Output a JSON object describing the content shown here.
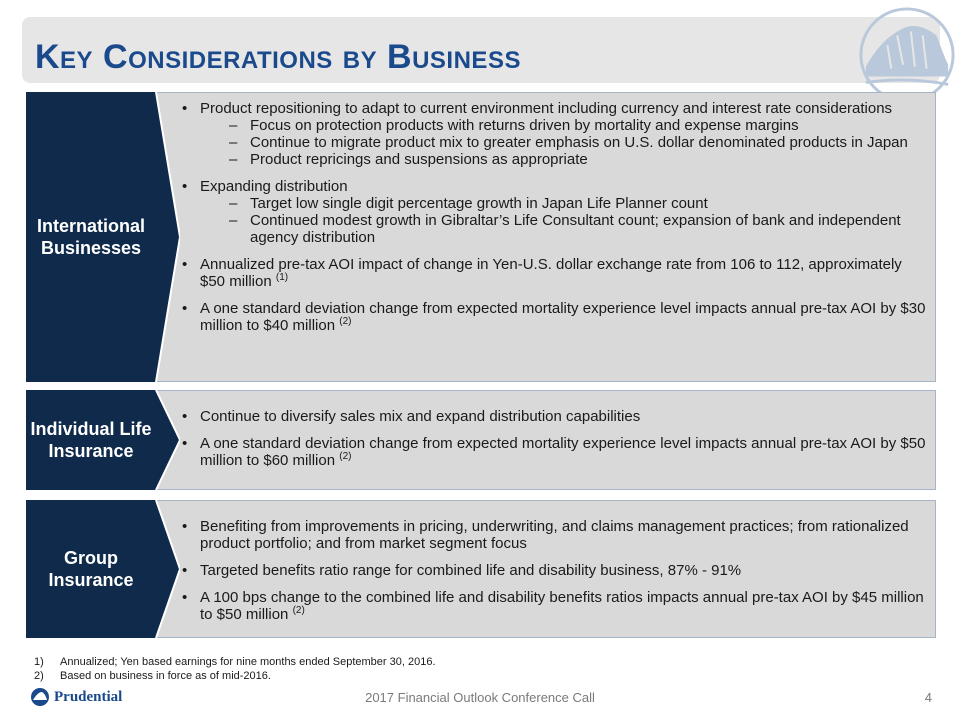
{
  "title": "Key Considerations by Business",
  "sections": {
    "international": {
      "label": "International Businesses",
      "bullets": [
        {
          "text": "Product repositioning to adapt to current environment including currency and interest rate considerations",
          "subs": [
            "Focus on protection products with returns driven by mortality and expense margins",
            "Continue to migrate product mix to greater emphasis on U.S. dollar denominated products in Japan",
            "Product repricings and suspensions as appropriate"
          ]
        },
        {
          "text": "Expanding distribution",
          "subs": [
            "Target low single digit percentage growth in Japan Life Planner count",
            "Continued modest growth in Gibraltar’s Life Consultant count; expansion of bank and independent agency distribution"
          ]
        },
        {
          "text": "Annualized pre-tax AOI impact of change in Yen-U.S. dollar exchange rate from 106 to 112, approximately $50 million",
          "sup": "(1)"
        },
        {
          "text": "A one standard deviation change from expected mortality experience level impacts annual pre-tax AOI by $30 million to $40 million",
          "sup": "(2)"
        }
      ]
    },
    "individual": {
      "label": "Individual Life Insurance",
      "bullets": [
        {
          "text": "Continue to diversify sales mix and expand distribution capabilities"
        },
        {
          "text": "A one standard deviation change from expected mortality experience level impacts annual pre-tax AOI by $50 million to $60 million",
          "sup": "(2)"
        }
      ]
    },
    "group": {
      "label": "Group Insurance",
      "bullets": [
        {
          "text": "Benefiting from improvements in pricing, underwriting, and claims management practices; from rationalized product portfolio; and from market segment focus"
        },
        {
          "text": "Targeted benefits ratio range for combined life and disability business, 87% - 91%"
        },
        {
          "text": "A 100 bps change to the combined life and disability benefits ratios impacts annual pre-tax AOI by $45 million to $50 million",
          "sup": "(2)"
        }
      ]
    }
  },
  "footnotes": [
    {
      "num": "1)",
      "text": "Annualized; Yen based earnings for nine months ended September 30, 2016."
    },
    {
      "num": "2)",
      "text": "Based on business in force as of mid-2016."
    }
  ],
  "footer": {
    "logo_text": "Prudential",
    "center_text": "2017 Financial Outlook Conference Call",
    "page_number": "4"
  },
  "colors": {
    "title": "#1a4a8c",
    "label_bg": "#0f2a4a",
    "panel_bg": "#d9d9d9"
  }
}
